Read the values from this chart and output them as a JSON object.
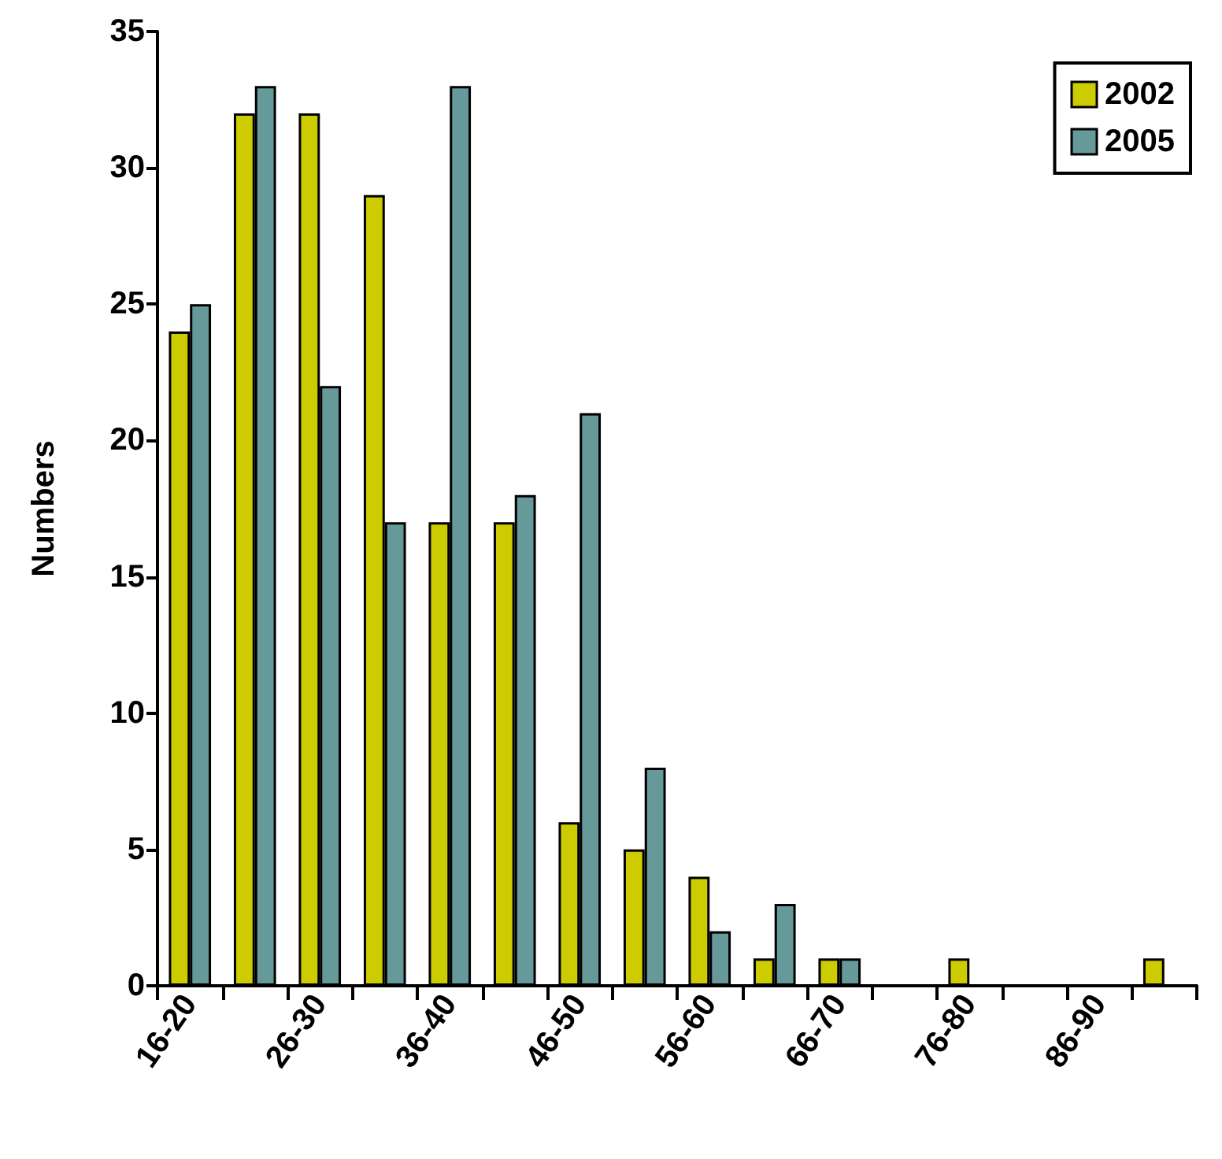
{
  "chart_data": {
    "type": "bar",
    "ylabel": "Numbers",
    "categories": [
      "16-20",
      null,
      "26-30",
      null,
      "36-40",
      null,
      "46-50",
      null,
      "56-60",
      null,
      "66-70",
      null,
      "76-80",
      null,
      "86-90",
      null
    ],
    "series": [
      {
        "name": "2002",
        "color": "#cccc00",
        "values": [
          24,
          32,
          32,
          29,
          17,
          17,
          6,
          5,
          4,
          1,
          1,
          0,
          1,
          0,
          0,
          1
        ]
      },
      {
        "name": "2005",
        "color": "#669999",
        "values": [
          25,
          33,
          22,
          17,
          33,
          18,
          21,
          8,
          2,
          3,
          1,
          0,
          0,
          0,
          0,
          0
        ]
      }
    ],
    "ylim": [
      0,
      35
    ],
    "yticks": [
      0,
      5,
      10,
      15,
      20,
      25,
      30,
      35
    ],
    "grid": false,
    "legend": "top right"
  }
}
